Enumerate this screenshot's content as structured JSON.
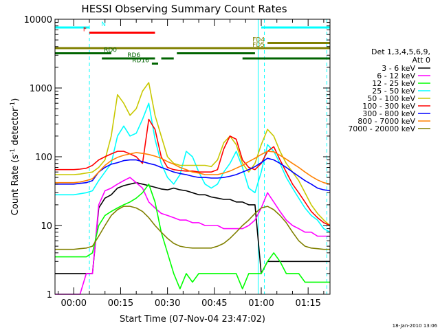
{
  "chart_data": {
    "type": "line",
    "title": "HESSI Observing Summary Count Rates",
    "xlabel": "Start Time (07-Nov-04 23:47:02)",
    "ylabel": "Count Rate (s",
    "ylabel_sup": "-1",
    "ylabel_mid": " detector",
    "ylabel_end": ")",
    "footer": "18-Jan-2010 13:06",
    "y_scale": "log",
    "ylim": [
      1,
      10000
    ],
    "xlim_minutes": [
      -6,
      82
    ],
    "x_ticks": [
      {
        "m": 0,
        "label": "00:00"
      },
      {
        "m": 15,
        "label": "00:15"
      },
      {
        "m": 30,
        "label": "00:30"
      },
      {
        "m": 45,
        "label": "00:45"
      },
      {
        "m": 60,
        "label": "01:00"
      },
      {
        "m": 75,
        "label": "01:15"
      }
    ],
    "y_ticks": [
      {
        "v": 1,
        "label": "1"
      },
      {
        "v": 10,
        "label": "10"
      },
      {
        "v": 100,
        "label": "100"
      },
      {
        "v": 1000,
        "label": "1000"
      },
      {
        "v": 10000,
        "label": "10000"
      }
    ],
    "legend_title": [
      "Det 1,3,4,5,6,9,",
      "Att 0"
    ],
    "series": [
      {
        "name": "3 - 6 keV",
        "color": "#000000",
        "x": [
          -6,
          0,
          2,
          4,
          6,
          8,
          10,
          12,
          14,
          16,
          18,
          20,
          22,
          24,
          26,
          28,
          30,
          32,
          34,
          36,
          38,
          40,
          42,
          44,
          46,
          48,
          50,
          52,
          54,
          56,
          58,
          60,
          62,
          64,
          66,
          68,
          70,
          72,
          74,
          76,
          78,
          80,
          82
        ],
        "y": [
          2,
          2,
          2,
          2,
          2,
          18,
          25,
          28,
          35,
          38,
          40,
          42,
          40,
          38,
          36,
          34,
          33,
          35,
          33,
          32,
          30,
          28,
          28,
          26,
          25,
          24,
          24,
          22,
          22,
          20,
          20,
          2,
          3,
          3,
          3,
          3,
          3,
          3,
          3,
          3,
          3,
          3,
          3
        ]
      },
      {
        "name": "6 - 12 keV",
        "color": "#ff00ff",
        "x": [
          -6,
          -2,
          0,
          2,
          4,
          6,
          8,
          10,
          12,
          14,
          16,
          18,
          20,
          22,
          24,
          26,
          28,
          30,
          32,
          34,
          36,
          38,
          40,
          42,
          44,
          46,
          48,
          50,
          52,
          54,
          56,
          58,
          60,
          62,
          64,
          66,
          68,
          70,
          72,
          74,
          76,
          78,
          80,
          82
        ],
        "y": [
          1,
          1,
          1,
          1,
          2,
          2,
          20,
          32,
          35,
          40,
          45,
          50,
          42,
          35,
          22,
          18,
          15,
          14,
          13,
          12,
          12,
          11,
          11,
          10,
          10,
          10,
          9,
          9,
          9,
          9,
          10,
          12,
          18,
          30,
          22,
          16,
          12,
          10,
          9,
          8,
          8,
          7,
          7,
          7
        ]
      },
      {
        "name": "12 - 25 keV",
        "color": "#00ff00",
        "x": [
          -6,
          -2,
          0,
          2,
          4,
          6,
          8,
          10,
          12,
          14,
          16,
          18,
          20,
          22,
          24,
          26,
          28,
          30,
          32,
          34,
          36,
          38,
          40,
          42,
          44,
          46,
          48,
          50,
          52,
          54,
          56,
          58,
          60,
          62,
          64,
          66,
          68,
          70,
          72,
          74,
          76,
          78,
          80,
          82
        ],
        "y": [
          3.5,
          3.5,
          3.5,
          3.5,
          3.5,
          4,
          10,
          14,
          16,
          18,
          20,
          22,
          25,
          30,
          40,
          22,
          8,
          4,
          2,
          1.2,
          2,
          1.5,
          2,
          2,
          2,
          2,
          2,
          2,
          2,
          1.2,
          2,
          2,
          2,
          3,
          4,
          3,
          2,
          2,
          2,
          1.5,
          1.5,
          1.5,
          1.5,
          1.5
        ]
      },
      {
        "name": "25 - 50 keV",
        "color": "#00ffff",
        "x": [
          -6,
          -2,
          0,
          2,
          4,
          6,
          8,
          10,
          12,
          14,
          16,
          18,
          20,
          22,
          24,
          26,
          28,
          30,
          32,
          34,
          36,
          38,
          40,
          42,
          44,
          46,
          48,
          50,
          52,
          54,
          56,
          58,
          60,
          62,
          64,
          66,
          68,
          70,
          72,
          74,
          76,
          78,
          80,
          82
        ],
        "y": [
          28,
          28,
          28,
          29,
          30,
          32,
          45,
          60,
          80,
          200,
          280,
          200,
          220,
          350,
          600,
          180,
          80,
          50,
          40,
          55,
          120,
          100,
          60,
          40,
          35,
          40,
          60,
          80,
          120,
          70,
          35,
          30,
          60,
          150,
          120,
          80,
          50,
          35,
          25,
          18,
          14,
          12,
          9,
          8
        ]
      },
      {
        "name": "50 - 100 keV",
        "color": "#c8c800",
        "x": [
          -6,
          -2,
          0,
          2,
          4,
          6,
          8,
          10,
          12,
          14,
          16,
          18,
          20,
          22,
          24,
          26,
          28,
          30,
          32,
          34,
          36,
          38,
          40,
          42,
          44,
          46,
          48,
          50,
          52,
          54,
          56,
          58,
          60,
          62,
          64,
          66,
          68,
          70,
          72,
          74,
          76,
          78,
          80,
          82
        ],
        "y": [
          55,
          55,
          55,
          56,
          58,
          60,
          70,
          90,
          200,
          800,
          600,
          400,
          500,
          900,
          1200,
          400,
          200,
          100,
          80,
          75,
          75,
          75,
          75,
          75,
          72,
          90,
          160,
          200,
          150,
          80,
          60,
          80,
          150,
          250,
          200,
          120,
          80,
          60,
          45,
          30,
          20,
          15,
          12,
          10
        ]
      },
      {
        "name": "100 - 300 keV",
        "color": "#ff0000",
        "x": [
          -6,
          -2,
          0,
          2,
          4,
          6,
          8,
          10,
          12,
          14,
          16,
          18,
          20,
          22,
          24,
          26,
          28,
          30,
          32,
          34,
          36,
          38,
          40,
          42,
          44,
          46,
          48,
          50,
          52,
          54,
          56,
          58,
          60,
          62,
          64,
          66,
          68,
          70,
          72,
          74,
          76,
          78,
          80,
          82
        ],
        "y": [
          65,
          65,
          65,
          66,
          68,
          75,
          90,
          100,
          110,
          120,
          120,
          110,
          100,
          80,
          350,
          250,
          100,
          70,
          65,
          63,
          62,
          62,
          60,
          60,
          60,
          65,
          130,
          200,
          180,
          90,
          70,
          65,
          80,
          120,
          140,
          90,
          60,
          40,
          30,
          22,
          16,
          13,
          11,
          10
        ]
      },
      {
        "name": "300 - 800 keV",
        "color": "#0000ff",
        "x": [
          -6,
          -2,
          0,
          2,
          4,
          6,
          8,
          10,
          12,
          14,
          16,
          18,
          20,
          22,
          24,
          26,
          28,
          30,
          32,
          34,
          36,
          38,
          40,
          42,
          44,
          46,
          48,
          50,
          52,
          54,
          56,
          58,
          60,
          62,
          64,
          66,
          68,
          70,
          72,
          74,
          76,
          78,
          80,
          82
        ],
        "y": [
          40,
          40,
          40,
          41,
          42,
          45,
          60,
          70,
          78,
          82,
          88,
          90,
          90,
          85,
          80,
          76,
          70,
          65,
          60,
          57,
          55,
          52,
          50,
          50,
          49,
          49,
          50,
          52,
          55,
          60,
          65,
          72,
          82,
          95,
          90,
          80,
          70,
          60,
          52,
          45,
          40,
          35,
          33,
          32
        ]
      },
      {
        "name": "800 - 7000 keV",
        "color": "#ff8000",
        "x": [
          -6,
          -2,
          0,
          2,
          4,
          6,
          8,
          10,
          12,
          14,
          16,
          18,
          20,
          22,
          24,
          26,
          28,
          30,
          32,
          34,
          36,
          38,
          40,
          42,
          44,
          46,
          48,
          50,
          52,
          54,
          56,
          58,
          60,
          62,
          64,
          66,
          68,
          70,
          72,
          74,
          76,
          78,
          80,
          82
        ],
        "y": [
          42,
          42,
          42,
          43,
          45,
          48,
          60,
          75,
          88,
          98,
          105,
          110,
          115,
          112,
          108,
          102,
          95,
          85,
          78,
          70,
          65,
          60,
          58,
          55,
          55,
          55,
          58,
          62,
          68,
          75,
          85,
          95,
          108,
          120,
          118,
          105,
          92,
          80,
          70,
          60,
          52,
          46,
          42,
          40
        ]
      },
      {
        "name": "7000 - 20000 keV",
        "color": "#808000",
        "x": [
          -6,
          -2,
          0,
          2,
          4,
          6,
          8,
          10,
          12,
          14,
          16,
          18,
          20,
          22,
          24,
          26,
          28,
          30,
          32,
          34,
          36,
          38,
          40,
          42,
          44,
          46,
          48,
          50,
          52,
          54,
          56,
          58,
          60,
          62,
          64,
          66,
          68,
          70,
          72,
          74,
          76,
          78,
          80,
          82
        ],
        "y": [
          4.5,
          4.5,
          4.5,
          4.6,
          4.7,
          5,
          7,
          10,
          14,
          17,
          19,
          19,
          18,
          16,
          13,
          10,
          8,
          6.5,
          5.5,
          5,
          4.8,
          4.7,
          4.7,
          4.7,
          4.7,
          5,
          5.5,
          6.5,
          8,
          10,
          12,
          15,
          18,
          19,
          17,
          14,
          11,
          8,
          6,
          5,
          4.7,
          4.6,
          4.5,
          4.5
        ]
      }
    ],
    "flags": [
      {
        "name": "N",
        "label": "N",
        "color": "#00ffff",
        "label_color": "#00ffff",
        "level": 1,
        "segments": [
          [
            -6,
            5
          ],
          [
            60,
            82
          ]
        ]
      },
      {
        "name": "F",
        "label": "F",
        "color": "#ff0000",
        "label_color": "#ff0000",
        "level": 2,
        "segments": [
          [
            5,
            26
          ]
        ]
      },
      {
        "name": "FD4",
        "label": "FD4",
        "color": "#808000",
        "label_color": "#808000",
        "level": 4,
        "segments": [
          [
            62,
            82
          ]
        ]
      },
      {
        "name": "FD5",
        "label": "FD5",
        "color": "#808000",
        "label_color": "#808000",
        "level": 5,
        "segments": [
          [
            -6,
            82
          ]
        ]
      },
      {
        "name": "RD0",
        "label": "RD0",
        "color": "#006400",
        "label_color": "#006400",
        "level": 6,
        "segments": [
          [
            -6,
            12
          ],
          [
            33,
            58
          ]
        ]
      },
      {
        "name": "RD6",
        "label": "RD6",
        "color": "#006400",
        "label_color": "#006400",
        "level": 7,
        "segments": [
          [
            9,
            26
          ],
          [
            28,
            32
          ],
          [
            54,
            82
          ]
        ]
      },
      {
        "name": "RD16",
        "label": "RD16",
        "color": "#006400",
        "label_color": "#006400",
        "level": 8,
        "segments": [
          [
            25,
            27
          ]
        ]
      }
    ],
    "vlines": [
      {
        "m": -6,
        "style": "solid",
        "color": "#00ffff"
      },
      {
        "m": 5,
        "style": "dashed",
        "color": "#00ffff"
      },
      {
        "m": 59,
        "style": "solid",
        "color": "#00ffff"
      },
      {
        "m": 61,
        "style": "dashed",
        "color": "#00ffff"
      },
      {
        "m": 81,
        "style": "dashed",
        "color": "#00ffff"
      }
    ]
  }
}
